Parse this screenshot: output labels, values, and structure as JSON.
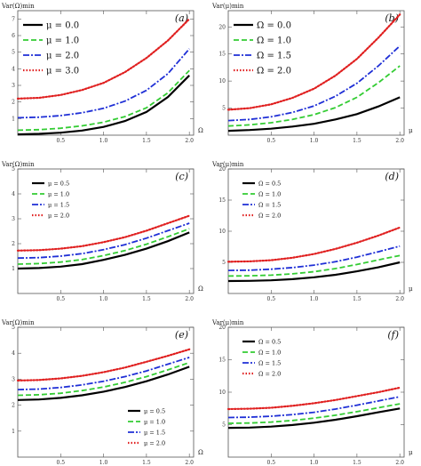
{
  "chart_data": [
    {
      "type": "line",
      "panel_label": "(a)",
      "ylabel": "Var(Ω)min",
      "xlabel": "Ω",
      "xlim": [
        0,
        2.05
      ],
      "ylim": [
        0,
        7.5
      ],
      "xticks": [
        0.5,
        1.0,
        1.5,
        2.0
      ],
      "yticks": [
        1,
        2,
        3,
        4,
        5,
        6,
        7
      ],
      "legend_position": "top-left",
      "legend_size": "large",
      "series": [
        {
          "name": "μ = 0.0",
          "color": "#000000",
          "style": "solid",
          "x": [
            0,
            0.25,
            0.5,
            0.75,
            1.0,
            1.25,
            1.5,
            1.75,
            2.0
          ],
          "y": [
            0.05,
            0.08,
            0.15,
            0.28,
            0.5,
            0.85,
            1.4,
            2.3,
            3.6
          ]
        },
        {
          "name": "μ = 1.0",
          "color": "#33cc33",
          "style": "dash",
          "x": [
            0,
            0.25,
            0.5,
            0.75,
            1.0,
            1.25,
            1.5,
            1.75,
            2.0
          ],
          "y": [
            0.3,
            0.33,
            0.42,
            0.56,
            0.78,
            1.12,
            1.65,
            2.55,
            3.9
          ]
        },
        {
          "name": "μ = 2.0",
          "color": "#1f2fd6",
          "style": "dashdot",
          "x": [
            0,
            0.25,
            0.5,
            0.75,
            1.0,
            1.25,
            1.5,
            1.75,
            2.0
          ],
          "y": [
            1.05,
            1.08,
            1.18,
            1.35,
            1.62,
            2.05,
            2.7,
            3.7,
            5.2
          ]
        },
        {
          "name": "μ = 3.0",
          "color": "#e02020",
          "style": "dot",
          "x": [
            0,
            0.25,
            0.5,
            0.75,
            1.0,
            1.25,
            1.5,
            1.75,
            2.0
          ],
          "y": [
            2.2,
            2.25,
            2.42,
            2.72,
            3.15,
            3.8,
            4.65,
            5.7,
            7.0
          ]
        }
      ]
    },
    {
      "type": "line",
      "panel_label": "(b)",
      "ylabel": "Var(μ)min",
      "xlabel": "μ",
      "xlim": [
        0,
        2.05
      ],
      "ylim": [
        0,
        23
      ],
      "xticks": [
        0.5,
        1.0,
        1.5,
        2.0
      ],
      "yticks": [
        5,
        10,
        15,
        20
      ],
      "legend_position": "top-left",
      "legend_size": "large",
      "series": [
        {
          "name": "Ω = 0.0",
          "color": "#000000",
          "style": "solid",
          "x": [
            0,
            0.25,
            0.5,
            0.75,
            1.0,
            1.25,
            1.5,
            1.75,
            2.0
          ],
          "y": [
            0.8,
            0.95,
            1.2,
            1.6,
            2.1,
            2.9,
            3.9,
            5.3,
            7.0
          ]
        },
        {
          "name": "Ω = 1.0",
          "color": "#33cc33",
          "style": "dash",
          "x": [
            0,
            0.25,
            0.5,
            0.75,
            1.0,
            1.25,
            1.5,
            1.75,
            2.0
          ],
          "y": [
            1.7,
            1.9,
            2.3,
            2.9,
            3.8,
            5.1,
            7.0,
            9.7,
            12.8
          ]
        },
        {
          "name": "Ω = 1.5",
          "color": "#1f2fd6",
          "style": "dashdot",
          "x": [
            0,
            0.25,
            0.5,
            0.75,
            1.0,
            1.25,
            1.5,
            1.75,
            2.0
          ],
          "y": [
            2.7,
            2.9,
            3.4,
            4.2,
            5.4,
            7.2,
            9.6,
            12.8,
            16.5
          ]
        },
        {
          "name": "Ω = 2.0",
          "color": "#e02020",
          "style": "dot",
          "x": [
            0,
            0.25,
            0.5,
            0.75,
            1.0,
            1.25,
            1.5,
            1.75,
            2.0
          ],
          "y": [
            4.7,
            5.0,
            5.7,
            6.9,
            8.6,
            11.0,
            14.1,
            18.0,
            22.3
          ]
        }
      ]
    },
    {
      "type": "line",
      "panel_label": "(c)",
      "ylabel": "Var(Ω)min",
      "xlabel": "Ω",
      "xlim": [
        0,
        2.05
      ],
      "ylim": [
        0,
        5
      ],
      "xticks": [
        0.5,
        1.0,
        1.5,
        2.0
      ],
      "yticks": [
        1,
        2,
        3,
        4,
        5
      ],
      "legend_position": "top-left",
      "legend_size": "small",
      "series": [
        {
          "name": "μ = 0.5",
          "color": "#000000",
          "style": "solid",
          "x": [
            0,
            0.25,
            0.5,
            0.75,
            1.0,
            1.25,
            1.5,
            1.75,
            2.0
          ],
          "y": [
            1.0,
            1.02,
            1.08,
            1.18,
            1.35,
            1.55,
            1.8,
            2.1,
            2.45
          ]
        },
        {
          "name": "μ = 1.0",
          "color": "#33cc33",
          "style": "dash",
          "x": [
            0,
            0.25,
            0.5,
            0.75,
            1.0,
            1.25,
            1.5,
            1.75,
            2.0
          ],
          "y": [
            1.18,
            1.2,
            1.26,
            1.36,
            1.52,
            1.72,
            1.98,
            2.28,
            2.6
          ]
        },
        {
          "name": "μ = 1.5",
          "color": "#1f2fd6",
          "style": "dashdot",
          "x": [
            0,
            0.25,
            0.5,
            0.75,
            1.0,
            1.25,
            1.5,
            1.75,
            2.0
          ],
          "y": [
            1.42,
            1.44,
            1.5,
            1.6,
            1.76,
            1.96,
            2.22,
            2.52,
            2.82
          ]
        },
        {
          "name": "μ = 2.0",
          "color": "#e02020",
          "style": "dot",
          "x": [
            0,
            0.25,
            0.5,
            0.75,
            1.0,
            1.25,
            1.5,
            1.75,
            2.0
          ],
          "y": [
            1.72,
            1.74,
            1.8,
            1.9,
            2.06,
            2.26,
            2.52,
            2.82,
            3.12
          ]
        }
      ]
    },
    {
      "type": "line",
      "panel_label": "(d)",
      "ylabel": "Var(μ)min",
      "xlabel": "μ",
      "xlim": [
        0,
        2.05
      ],
      "ylim": [
        0,
        20
      ],
      "xticks": [
        0.5,
        1.0,
        1.5,
        2.0
      ],
      "yticks": [
        5,
        10,
        15,
        20
      ],
      "legend_position": "top-left",
      "legend_size": "small",
      "series": [
        {
          "name": "Ω = 0.5",
          "color": "#000000",
          "style": "solid",
          "x": [
            0,
            0.25,
            0.5,
            0.75,
            1.0,
            1.25,
            1.5,
            1.75,
            2.0
          ],
          "y": [
            2.0,
            2.03,
            2.12,
            2.3,
            2.6,
            3.0,
            3.55,
            4.2,
            5.0
          ]
        },
        {
          "name": "Ω = 1.0",
          "color": "#33cc33",
          "style": "dash",
          "x": [
            0,
            0.25,
            0.5,
            0.75,
            1.0,
            1.25,
            1.5,
            1.75,
            2.0
          ],
          "y": [
            2.8,
            2.84,
            2.95,
            3.15,
            3.5,
            4.0,
            4.65,
            5.4,
            6.1
          ]
        },
        {
          "name": "Ω = 1.5",
          "color": "#1f2fd6",
          "style": "dashdot",
          "x": [
            0,
            0.25,
            0.5,
            0.75,
            1.0,
            1.25,
            1.5,
            1.75,
            2.0
          ],
          "y": [
            3.7,
            3.75,
            3.9,
            4.15,
            4.55,
            5.1,
            5.85,
            6.7,
            7.6
          ]
        },
        {
          "name": "Ω = 2.0",
          "color": "#e02020",
          "style": "dot",
          "x": [
            0,
            0.25,
            0.5,
            0.75,
            1.0,
            1.25,
            1.5,
            1.75,
            2.0
          ],
          "y": [
            5.1,
            5.15,
            5.35,
            5.75,
            6.35,
            7.15,
            8.15,
            9.3,
            10.6
          ]
        }
      ]
    },
    {
      "type": "line",
      "panel_label": "(e)",
      "ylabel": "Var(Ω)min",
      "xlabel": "Ω",
      "xlim": [
        0,
        2.05
      ],
      "ylim": [
        0,
        5
      ],
      "xticks": [
        0.5,
        1.0,
        1.5,
        2.0
      ],
      "yticks": [
        1,
        2,
        3,
        4,
        5
      ],
      "legend_position": "bottom-right",
      "legend_size": "small",
      "series": [
        {
          "name": "μ = 0.5",
          "color": "#000000",
          "style": "solid",
          "x": [
            0,
            0.25,
            0.5,
            0.75,
            1.0,
            1.25,
            1.5,
            1.75,
            2.0
          ],
          "y": [
            2.2,
            2.22,
            2.28,
            2.38,
            2.52,
            2.7,
            2.92,
            3.18,
            3.48
          ]
        },
        {
          "name": "μ = 1.0",
          "color": "#33cc33",
          "style": "dash",
          "x": [
            0,
            0.25,
            0.5,
            0.75,
            1.0,
            1.25,
            1.5,
            1.75,
            2.0
          ],
          "y": [
            2.38,
            2.4,
            2.46,
            2.56,
            2.7,
            2.88,
            3.1,
            3.36,
            3.64
          ]
        },
        {
          "name": "μ = 1.5",
          "color": "#1f2fd6",
          "style": "dashdot",
          "x": [
            0,
            0.25,
            0.5,
            0.75,
            1.0,
            1.25,
            1.5,
            1.75,
            2.0
          ],
          "y": [
            2.6,
            2.62,
            2.68,
            2.78,
            2.92,
            3.1,
            3.32,
            3.58,
            3.84
          ]
        },
        {
          "name": "μ = 2.0",
          "color": "#e02020",
          "style": "dot",
          "x": [
            0,
            0.25,
            0.5,
            0.75,
            1.0,
            1.25,
            1.5,
            1.75,
            2.0
          ],
          "y": [
            2.95,
            2.97,
            3.03,
            3.13,
            3.27,
            3.45,
            3.67,
            3.9,
            4.15
          ]
        }
      ]
    },
    {
      "type": "line",
      "panel_label": "(f)",
      "ylabel": "Var(μ)min",
      "xlabel": "μ",
      "xlim": [
        0,
        2.05
      ],
      "ylim": [
        0,
        20
      ],
      "xticks": [
        0.5,
        1.0,
        1.5,
        2.0
      ],
      "yticks": [
        5,
        10,
        15,
        20
      ],
      "legend_position": "top-left",
      "legend_size": "small",
      "series": [
        {
          "name": "Ω = 0.5",
          "color": "#000000",
          "style": "solid",
          "x": [
            0,
            0.25,
            0.5,
            0.75,
            1.0,
            1.25,
            1.5,
            1.75,
            2.0
          ],
          "y": [
            4.5,
            4.55,
            4.7,
            4.95,
            5.3,
            5.75,
            6.3,
            6.9,
            7.5
          ]
        },
        {
          "name": "Ω = 1.0",
          "color": "#33cc33",
          "style": "dash",
          "x": [
            0,
            0.25,
            0.5,
            0.75,
            1.0,
            1.25,
            1.5,
            1.75,
            2.0
          ],
          "y": [
            5.2,
            5.25,
            5.4,
            5.65,
            6.0,
            6.45,
            7.0,
            7.6,
            8.2
          ]
        },
        {
          "name": "Ω = 1.5",
          "color": "#1f2fd6",
          "style": "dashdot",
          "x": [
            0,
            0.25,
            0.5,
            0.75,
            1.0,
            1.25,
            1.5,
            1.75,
            2.0
          ],
          "y": [
            6.1,
            6.15,
            6.3,
            6.55,
            6.9,
            7.4,
            8.0,
            8.65,
            9.3
          ]
        },
        {
          "name": "Ω = 2.0",
          "color": "#e02020",
          "style": "dot",
          "x": [
            0,
            0.25,
            0.5,
            0.75,
            1.0,
            1.25,
            1.5,
            1.75,
            2.0
          ],
          "y": [
            7.4,
            7.45,
            7.6,
            7.9,
            8.3,
            8.8,
            9.4,
            10.0,
            10.7
          ]
        }
      ]
    }
  ]
}
